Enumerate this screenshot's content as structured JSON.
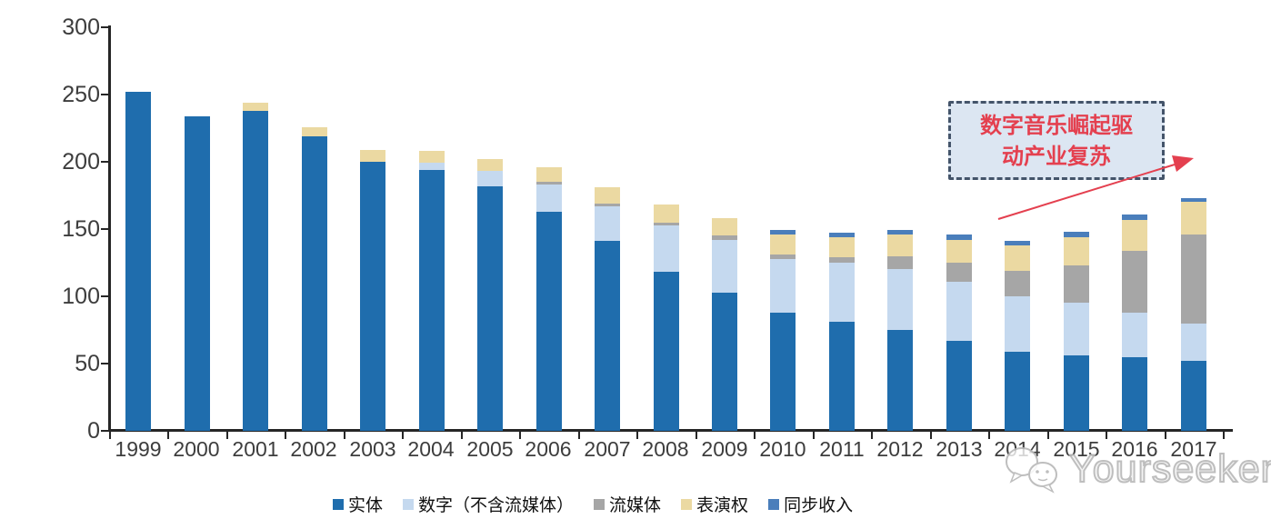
{
  "chart_data": {
    "type": "bar",
    "stacked": true,
    "title": "",
    "xlabel": "",
    "ylabel": "",
    "ylim": [
      0,
      300
    ],
    "yticks": [
      0,
      50,
      100,
      150,
      200,
      250,
      300
    ],
    "grid": false,
    "legend_position": "bottom",
    "categories": [
      "1999",
      "2000",
      "2001",
      "2002",
      "2003",
      "2004",
      "2005",
      "2006",
      "2007",
      "2008",
      "2009",
      "2010",
      "2011",
      "2012",
      "2013",
      "2014",
      "2015",
      "2016",
      "2017"
    ],
    "series": [
      {
        "name": "实体",
        "color": "#1F6DAD",
        "values": [
          252,
          234,
          238,
          219,
          200,
          194,
          182,
          163,
          141,
          118,
          103,
          88,
          81,
          75,
          67,
          59,
          56,
          55,
          52
        ]
      },
      {
        "name": "数字（不含流媒体）",
        "color": "#C5D9EF",
        "values": [
          0,
          0,
          0,
          0,
          0,
          5,
          11,
          20,
          26,
          35,
          39,
          40,
          44,
          45,
          44,
          41,
          39,
          33,
          28
        ]
      },
      {
        "name": "流媒体",
        "color": "#A6A6A6",
        "values": [
          0,
          0,
          0,
          0,
          0,
          0,
          0,
          2,
          2,
          2,
          3,
          3,
          4,
          10,
          14,
          19,
          28,
          46,
          66
        ]
      },
      {
        "name": "表演权",
        "color": "#EBD9A2",
        "values": [
          0,
          0,
          6,
          7,
          9,
          9,
          9,
          11,
          12,
          13,
          13,
          15,
          15,
          16,
          17,
          19,
          21,
          23,
          24
        ]
      },
      {
        "name": "同步收入",
        "color": "#4A7EBB",
        "values": [
          0,
          0,
          0,
          0,
          0,
          0,
          0,
          0,
          0,
          0,
          0,
          3,
          3,
          3,
          4,
          3,
          4,
          4,
          3
        ]
      }
    ]
  },
  "annotation": {
    "line1": "数字音乐崛起驱",
    "line2": "动产业复苏"
  },
  "watermark": {
    "text": "Yourseeker",
    "logo": "chat-bubbles-icon"
  },
  "colors": {
    "axis": "#262626",
    "tick_label": "#3D3D3D",
    "annotation_border": "#44546A",
    "annotation_fill": "#DCE6F2",
    "annotation_text": "#E4404F",
    "arrow": "#E4404F"
  }
}
